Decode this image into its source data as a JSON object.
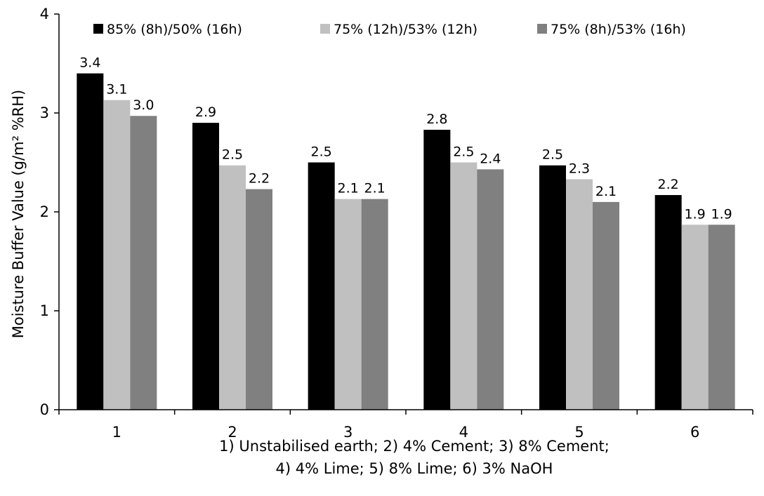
{
  "chart_data": {
    "type": "bar",
    "title": "",
    "ylabel": "Moisture Buffer Value (g/m² %RH)",
    "xlabel_lines": [
      "1) Unstabilised earth; 2) 4% Cement; 3) 8% Cement;",
      "4) 4% Lime; 5) 8% Lime; 6) 3% NaOH"
    ],
    "categories": [
      "1",
      "2",
      "3",
      "4",
      "5",
      "6"
    ],
    "ylim": [
      0,
      4
    ],
    "yticks": [
      "0",
      "1",
      "2",
      "3",
      "4"
    ],
    "grid": false,
    "legend_position": "top",
    "series": [
      {
        "name": "85% (8h)/50% (16h)",
        "color": "#000000",
        "values": [
          3.4,
          2.9,
          2.5,
          2.83,
          2.47,
          2.17
        ],
        "labels": [
          "3.4",
          "2.9",
          "2.5",
          "2.8",
          "2.5",
          "2.2"
        ]
      },
      {
        "name": "75% (12h)/53% (12h)",
        "color": "#c0c0c0",
        "values": [
          3.13,
          2.47,
          2.13,
          2.5,
          2.33,
          1.87
        ],
        "labels": [
          "3.1",
          "2.5",
          "2.1",
          "2.5",
          "2.3",
          "1.9"
        ]
      },
      {
        "name": "75% (8h)/53% (16h)",
        "color": "#808080",
        "values": [
          2.97,
          2.23,
          2.13,
          2.43,
          2.1,
          1.87
        ],
        "labels": [
          "3.0",
          "2.2",
          "2.1",
          "2.4",
          "2.1",
          "1.9"
        ]
      }
    ]
  }
}
